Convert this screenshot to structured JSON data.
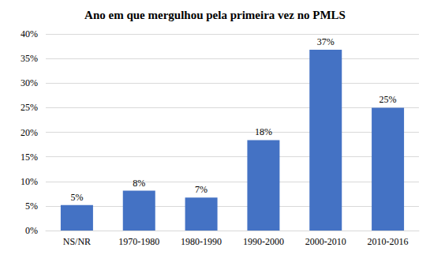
{
  "chart_data": {
    "type": "bar",
    "title": "Ano em que mergulhou pela primeira vez no PMLS",
    "categories": [
      "NS/NR",
      "1970-1980",
      "1980-1990",
      "1990-2000",
      "2000-2010",
      "2010-2016"
    ],
    "values": [
      5.2,
      8.1,
      6.7,
      18.4,
      36.8,
      25.0
    ],
    "value_labels": [
      "5%",
      "8%",
      "7%",
      "18%",
      "37%",
      "25%"
    ],
    "data_labels": true,
    "color": "#4472c4",
    "ylim": [
      0,
      40
    ],
    "yticks": [
      {
        "value": 0,
        "label": "0%"
      },
      {
        "value": 5,
        "label": "5%"
      },
      {
        "value": 10,
        "label": "10%"
      },
      {
        "value": 15,
        "label": "15%"
      },
      {
        "value": 20,
        "label": "20%"
      },
      {
        "value": 25,
        "label": "25%"
      },
      {
        "value": 30,
        "label": "30%"
      },
      {
        "value": 35,
        "label": "35%"
      },
      {
        "value": 40,
        "label": "40%"
      }
    ],
    "grid": true
  }
}
